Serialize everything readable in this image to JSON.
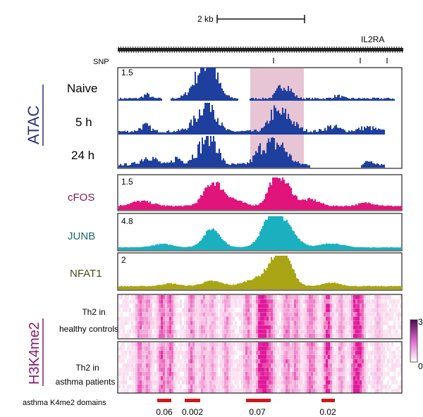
{
  "scale_bar": {
    "label": "2 kb"
  },
  "gene": {
    "label": "IL2RA"
  },
  "snp": {
    "label": "SNP"
  },
  "sections": {
    "atac": "ATAC",
    "h3k4me2": "H3K4me2"
  },
  "colors": {
    "atac": "#1f3f9f",
    "cfos": "#e0147a",
    "junb": "#1bb0bf",
    "nfat1": "#aaa515",
    "heatmap": "#e0189a",
    "highlight": "#dfb2c6",
    "domain_bar": "#cc1a1a",
    "atac_label": "#2a2f7a",
    "h3k_label": "#8a1a6e"
  },
  "tracks": [
    {
      "id": "naive",
      "label": "Naive",
      "scale": "1.5"
    },
    {
      "id": "h5",
      "label": "5 h",
      "scale": ""
    },
    {
      "id": "h24",
      "label": "24 h",
      "scale": ""
    },
    {
      "id": "cfos",
      "label": "cFOS",
      "scale": "1.5"
    },
    {
      "id": "junb",
      "label": "JUNB",
      "scale": "4.8"
    },
    {
      "id": "nfat1",
      "label": "NFAT1",
      "scale": "2"
    }
  ],
  "heatmaps": [
    {
      "id": "healthy",
      "label_line1": "Th2 in",
      "label_line2": "healthy controls"
    },
    {
      "id": "asthma",
      "label_line1": "Th2 in",
      "label_line2": "asthma patients"
    }
  ],
  "colorbar": {
    "max": "3",
    "min": "0"
  },
  "domains": {
    "title": "asthma K4me2 domains",
    "items": [
      {
        "p": "0.06"
      },
      {
        "p": "0.002"
      },
      {
        "p": "0.07"
      },
      {
        "p": "0.02"
      }
    ]
  }
}
